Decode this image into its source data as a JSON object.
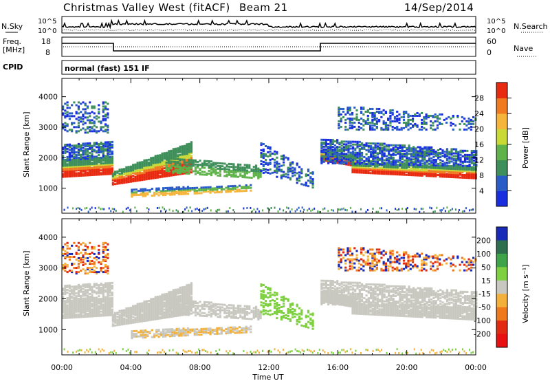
{
  "header": {
    "station": "Christmas Valley West (fitACF)",
    "beam": "Beam 21",
    "date": "14/Sep/2014"
  },
  "strip_labels": {
    "nsky": "N.Sky",
    "nsearch": "N.Search",
    "freq_label_1": "Freq.",
    "freq_label_2": "[MHz]",
    "nave": "Nave",
    "cpid": "CPID",
    "nsky_ticks": [
      "10^5",
      "10^0"
    ],
    "freq_ticks": [
      "18",
      "8"
    ],
    "nave_ticks": [
      "60",
      "0"
    ],
    "cpid_text": "normal (fast) 151 IF"
  },
  "chart_data": [
    {
      "type": "heatmap",
      "name": "power-panel",
      "ylabel": "Slant Range [km]",
      "yticks": [
        1000,
        2000,
        3000,
        4000
      ],
      "ylim": [
        180,
        4600
      ],
      "xlim": [
        0,
        24
      ],
      "colorbar": {
        "label": "Power [dB]",
        "ticks": [
          4,
          8,
          12,
          16,
          20,
          24,
          28
        ],
        "colors": [
          "#1a2ee0",
          "#2a5cc8",
          "#3f8f5a",
          "#5fb34a",
          "#c9d936",
          "#f5b43a",
          "#f07a20",
          "#e82a10"
        ]
      }
    },
    {
      "type": "heatmap",
      "name": "velocity-panel",
      "ylabel": "Slant Range [km]",
      "xlabel": "Time UT",
      "yticks": [
        1000,
        2000,
        3000,
        4000
      ],
      "ylim": [
        180,
        4600
      ],
      "xlim": [
        0,
        24
      ],
      "xticks": [
        "00:00",
        "04:00",
        "08:00",
        "12:00",
        "16:00",
        "20:00",
        "00:00"
      ],
      "xtick_values": [
        0,
        4,
        8,
        12,
        16,
        20,
        24
      ],
      "colorbar": {
        "label": "Velocity [m s⁻¹]",
        "ticks": [
          "200",
          "100",
          "50",
          "15",
          "-15",
          "-50",
          "-100",
          "-200"
        ],
        "colors": [
          "#1a2ab8",
          "#2e6e4e",
          "#3fa34a",
          "#7ed040",
          "#c8c8c0",
          "#f3b13b",
          "#ef7a1e",
          "#e22a12",
          "#e81010"
        ]
      }
    }
  ]
}
